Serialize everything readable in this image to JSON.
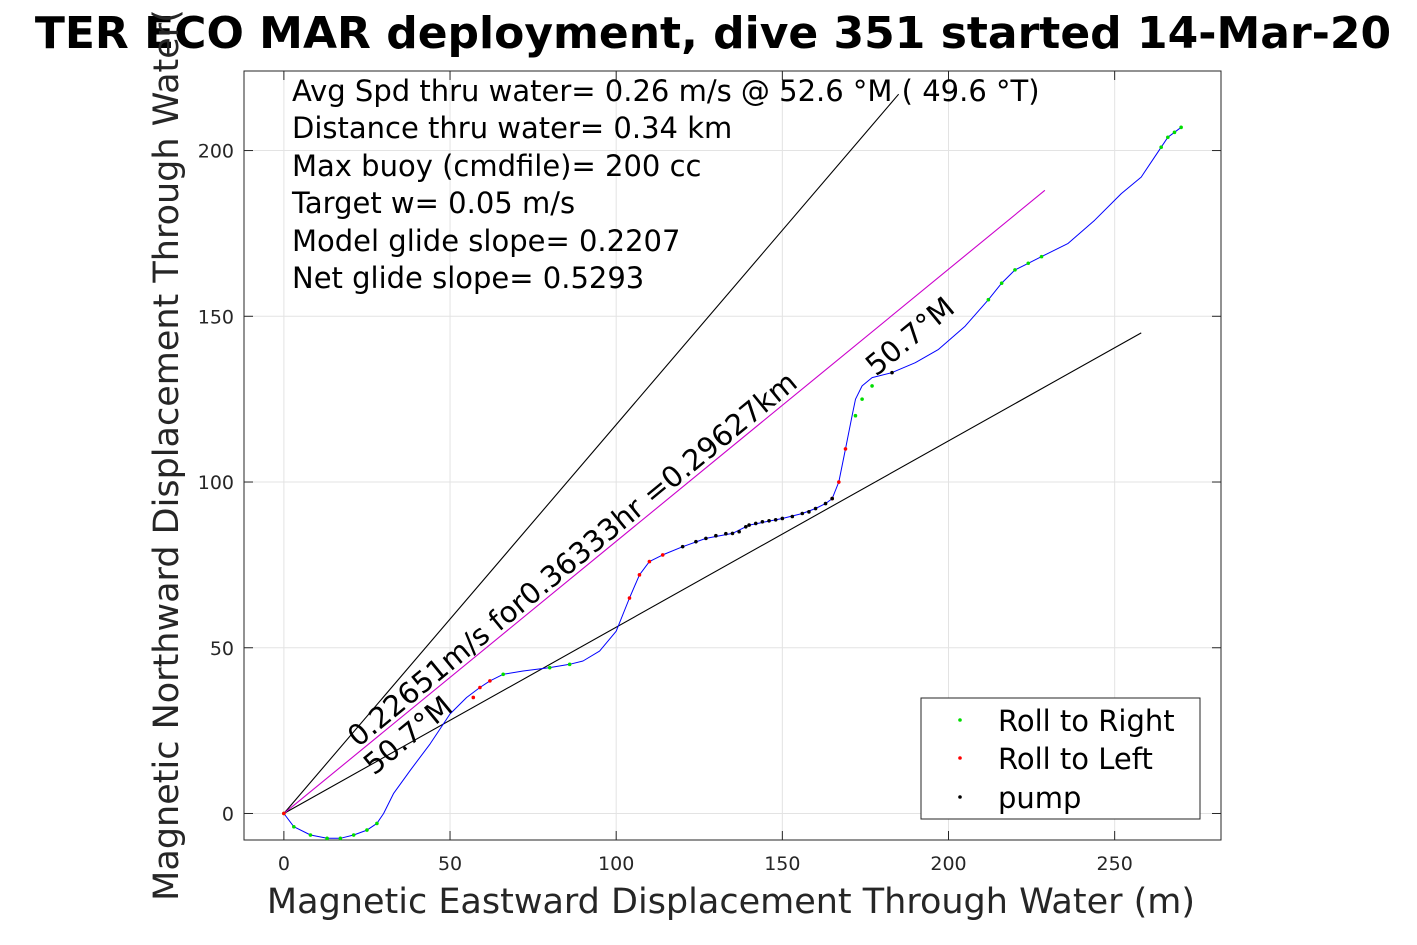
{
  "chart_data": {
    "type": "line",
    "title": "TER ECO MAR deployment, dive 351 started 14-Mar-20",
    "xlabel": "Magnetic Eastward Displacement Through Water (m)",
    "ylabel": "Magnetic Northward Displacement Through Water(",
    "xlim": [
      -12,
      282
    ],
    "ylim": [
      -8,
      224
    ],
    "xticks": [
      0,
      50,
      100,
      150,
      200,
      250
    ],
    "yticks": [
      0,
      50,
      100,
      150,
      200
    ],
    "grid": true,
    "annotations": [
      "Avg Spd thru water=  0.26 m/s @  52.6 °M ( 49.6 °T)",
      "Distance thru water=  0.34 km",
      "Max buoy (cmdfile)= 200 cc",
      "Target w= 0.05 m/s",
      "Model glide slope= 0.2207",
      "Net glide slope= 0.5293"
    ],
    "diagonal_label": "0.22651m/s for0.36333hr =0.29627km",
    "heading_labels": [
      "50.7°M",
      "50.7°M"
    ],
    "legend": {
      "position": "bottom-right",
      "entries": [
        "Roll to Right",
        "Roll to Left",
        "pump"
      ]
    },
    "reference_lines": [
      {
        "name": "upper bound",
        "color": "#000000",
        "x": [
          0,
          185
        ],
        "y": [
          0,
          217
        ]
      },
      {
        "name": "lower bound",
        "color": "#000000",
        "x": [
          0,
          258
        ],
        "y": [
          0,
          145
        ]
      },
      {
        "name": "net track",
        "color": "#cc00cc",
        "x": [
          0,
          229
        ],
        "y": [
          0,
          188
        ]
      }
    ],
    "track": {
      "color": "#0000ff",
      "x": [
        0,
        3,
        8,
        13,
        17,
        21,
        25,
        28,
        30,
        33,
        38,
        44,
        50,
        55,
        59,
        62,
        66,
        72,
        80,
        86,
        90,
        95,
        100,
        104,
        107,
        110,
        114,
        120,
        127,
        135,
        140,
        150,
        156,
        160,
        163,
        165,
        167,
        169,
        171,
        172,
        174,
        177,
        183,
        190,
        197,
        205,
        212,
        216,
        220,
        224,
        228,
        236,
        244,
        252,
        258,
        262,
        264,
        266,
        268,
        270
      ],
      "y": [
        0,
        -4,
        -6.5,
        -7.5,
        -7.5,
        -6.5,
        -5,
        -3,
        0,
        6,
        13,
        21,
        30,
        35,
        38,
        40,
        42,
        43,
        44,
        45,
        46,
        49,
        55,
        65,
        72,
        76,
        78,
        80.5,
        83,
        84.5,
        87,
        89,
        90.5,
        92,
        93.5,
        95,
        100,
        110,
        120,
        125,
        129,
        131.5,
        133,
        136,
        140,
        147,
        155,
        160,
        164,
        166,
        168,
        172,
        179,
        187,
        192,
        198,
        201,
        204,
        205.5,
        207
      ]
    },
    "markers": {
      "roll_right": {
        "color": "#00dd00",
        "x": [
          0,
          3,
          8,
          13,
          17,
          21,
          25,
          28,
          66,
          80,
          86,
          172,
          174,
          177,
          212,
          216,
          220,
          224,
          228,
          264,
          266,
          268,
          270
        ],
        "y": [
          0,
          -4,
          -6.5,
          -7.5,
          -7.5,
          -6.5,
          -5,
          -3,
          42,
          44,
          45,
          120,
          125,
          129,
          155,
          160,
          164,
          166,
          168,
          201,
          204,
          205.5,
          207
        ]
      },
      "roll_left": {
        "color": "#ff0000",
        "x": [
          0,
          57,
          59,
          62,
          104,
          107,
          110,
          114,
          165,
          167,
          169
        ],
        "y": [
          0,
          35,
          38,
          40,
          65,
          72,
          76,
          78,
          95,
          100,
          110
        ]
      },
      "pump": {
        "color": "#000000",
        "x": [
          120,
          124,
          127,
          130,
          133,
          135,
          137,
          139,
          140,
          142,
          144,
          146,
          148,
          150,
          153,
          156,
          158,
          160,
          163,
          165,
          183
        ],
        "y": [
          80.5,
          82,
          83,
          83.8,
          84.4,
          84.5,
          85,
          86.5,
          87,
          87.5,
          88,
          88.3,
          88.6,
          89,
          89.6,
          90.5,
          91,
          92,
          93.5,
          95,
          133
        ]
      }
    }
  }
}
